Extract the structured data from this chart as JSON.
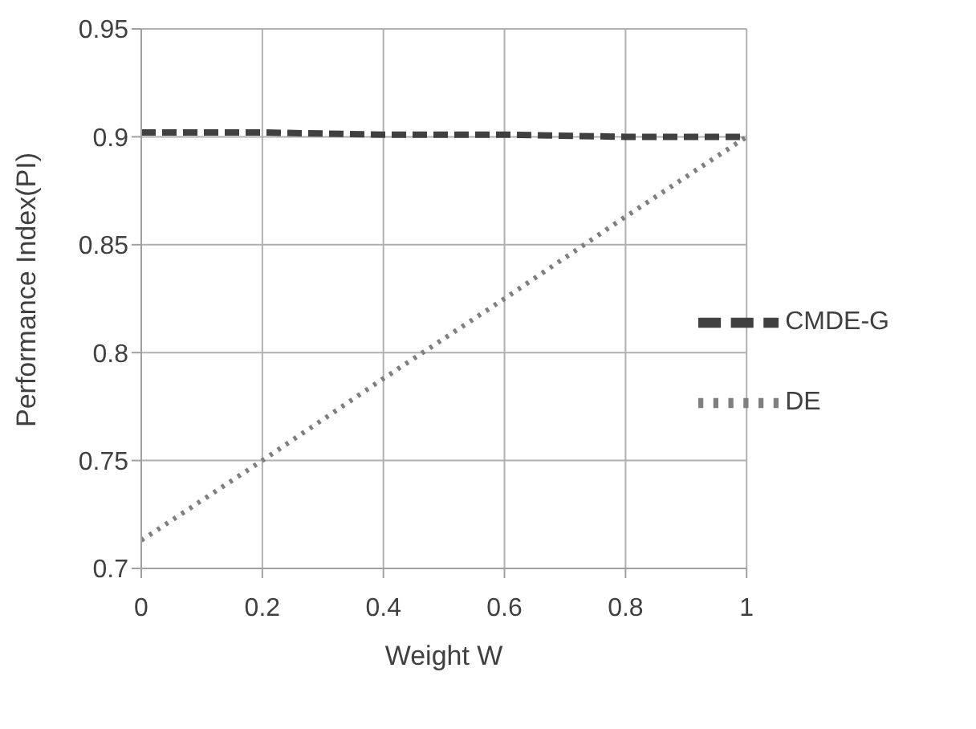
{
  "chart_data": {
    "type": "line",
    "xlabel": "Weight W",
    "ylabel": "Performance Index(PI)",
    "x": [
      0,
      0.2,
      0.4,
      0.6,
      0.8,
      1
    ],
    "series": [
      {
        "name": "DE",
        "color": "#7f7f7f",
        "line_style": "dotted",
        "values": [
          0.713,
          0.75,
          0.788,
          0.825,
          0.863,
          0.9
        ]
      },
      {
        "name": "CMDE-G",
        "color": "#404040",
        "line_style": "dashed",
        "values": [
          0.902,
          0.902,
          0.901,
          0.901,
          0.9,
          0.9
        ]
      }
    ],
    "xlim": [
      0,
      1
    ],
    "xticks": [
      0,
      0.2,
      0.4,
      0.6,
      0.8,
      1
    ],
    "ylim": [
      0.7,
      0.95
    ],
    "yticks": [
      0.7,
      0.75,
      0.8,
      0.85,
      0.9,
      0.95
    ],
    "grid": true,
    "legend": "right",
    "marker": "none"
  }
}
